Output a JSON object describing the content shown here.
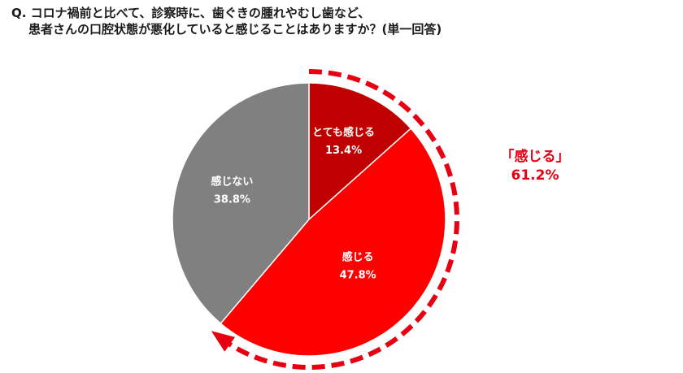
{
  "question": {
    "line1": "Q. コロナ禍前と比べて、診察時に、歯ぐきの腫れやむし歯など、",
    "line2": "患者さんの口腔状態が悪化していると感じることはありますか？(単一回答)"
  },
  "callout": {
    "label": "「感じる」",
    "value": "61.2%",
    "color": "#e60012"
  },
  "chart_data": {
    "type": "pie",
    "start": "12 o'clock, clockwise",
    "slices": [
      {
        "label": "とても感じる",
        "value": 13.4,
        "value_label": "13.4%",
        "color": "#c00000"
      },
      {
        "label": "感じる",
        "value": 47.8,
        "value_label": "47.8%",
        "color": "#ff0000"
      },
      {
        "label": "感じない",
        "value": 38.8,
        "value_label": "38.8%",
        "color": "#808080"
      }
    ],
    "highlight_arc": {
      "covers": [
        "とても感じる",
        "感じる"
      ],
      "style": "dashed-arrow",
      "color": "#e60012"
    }
  }
}
